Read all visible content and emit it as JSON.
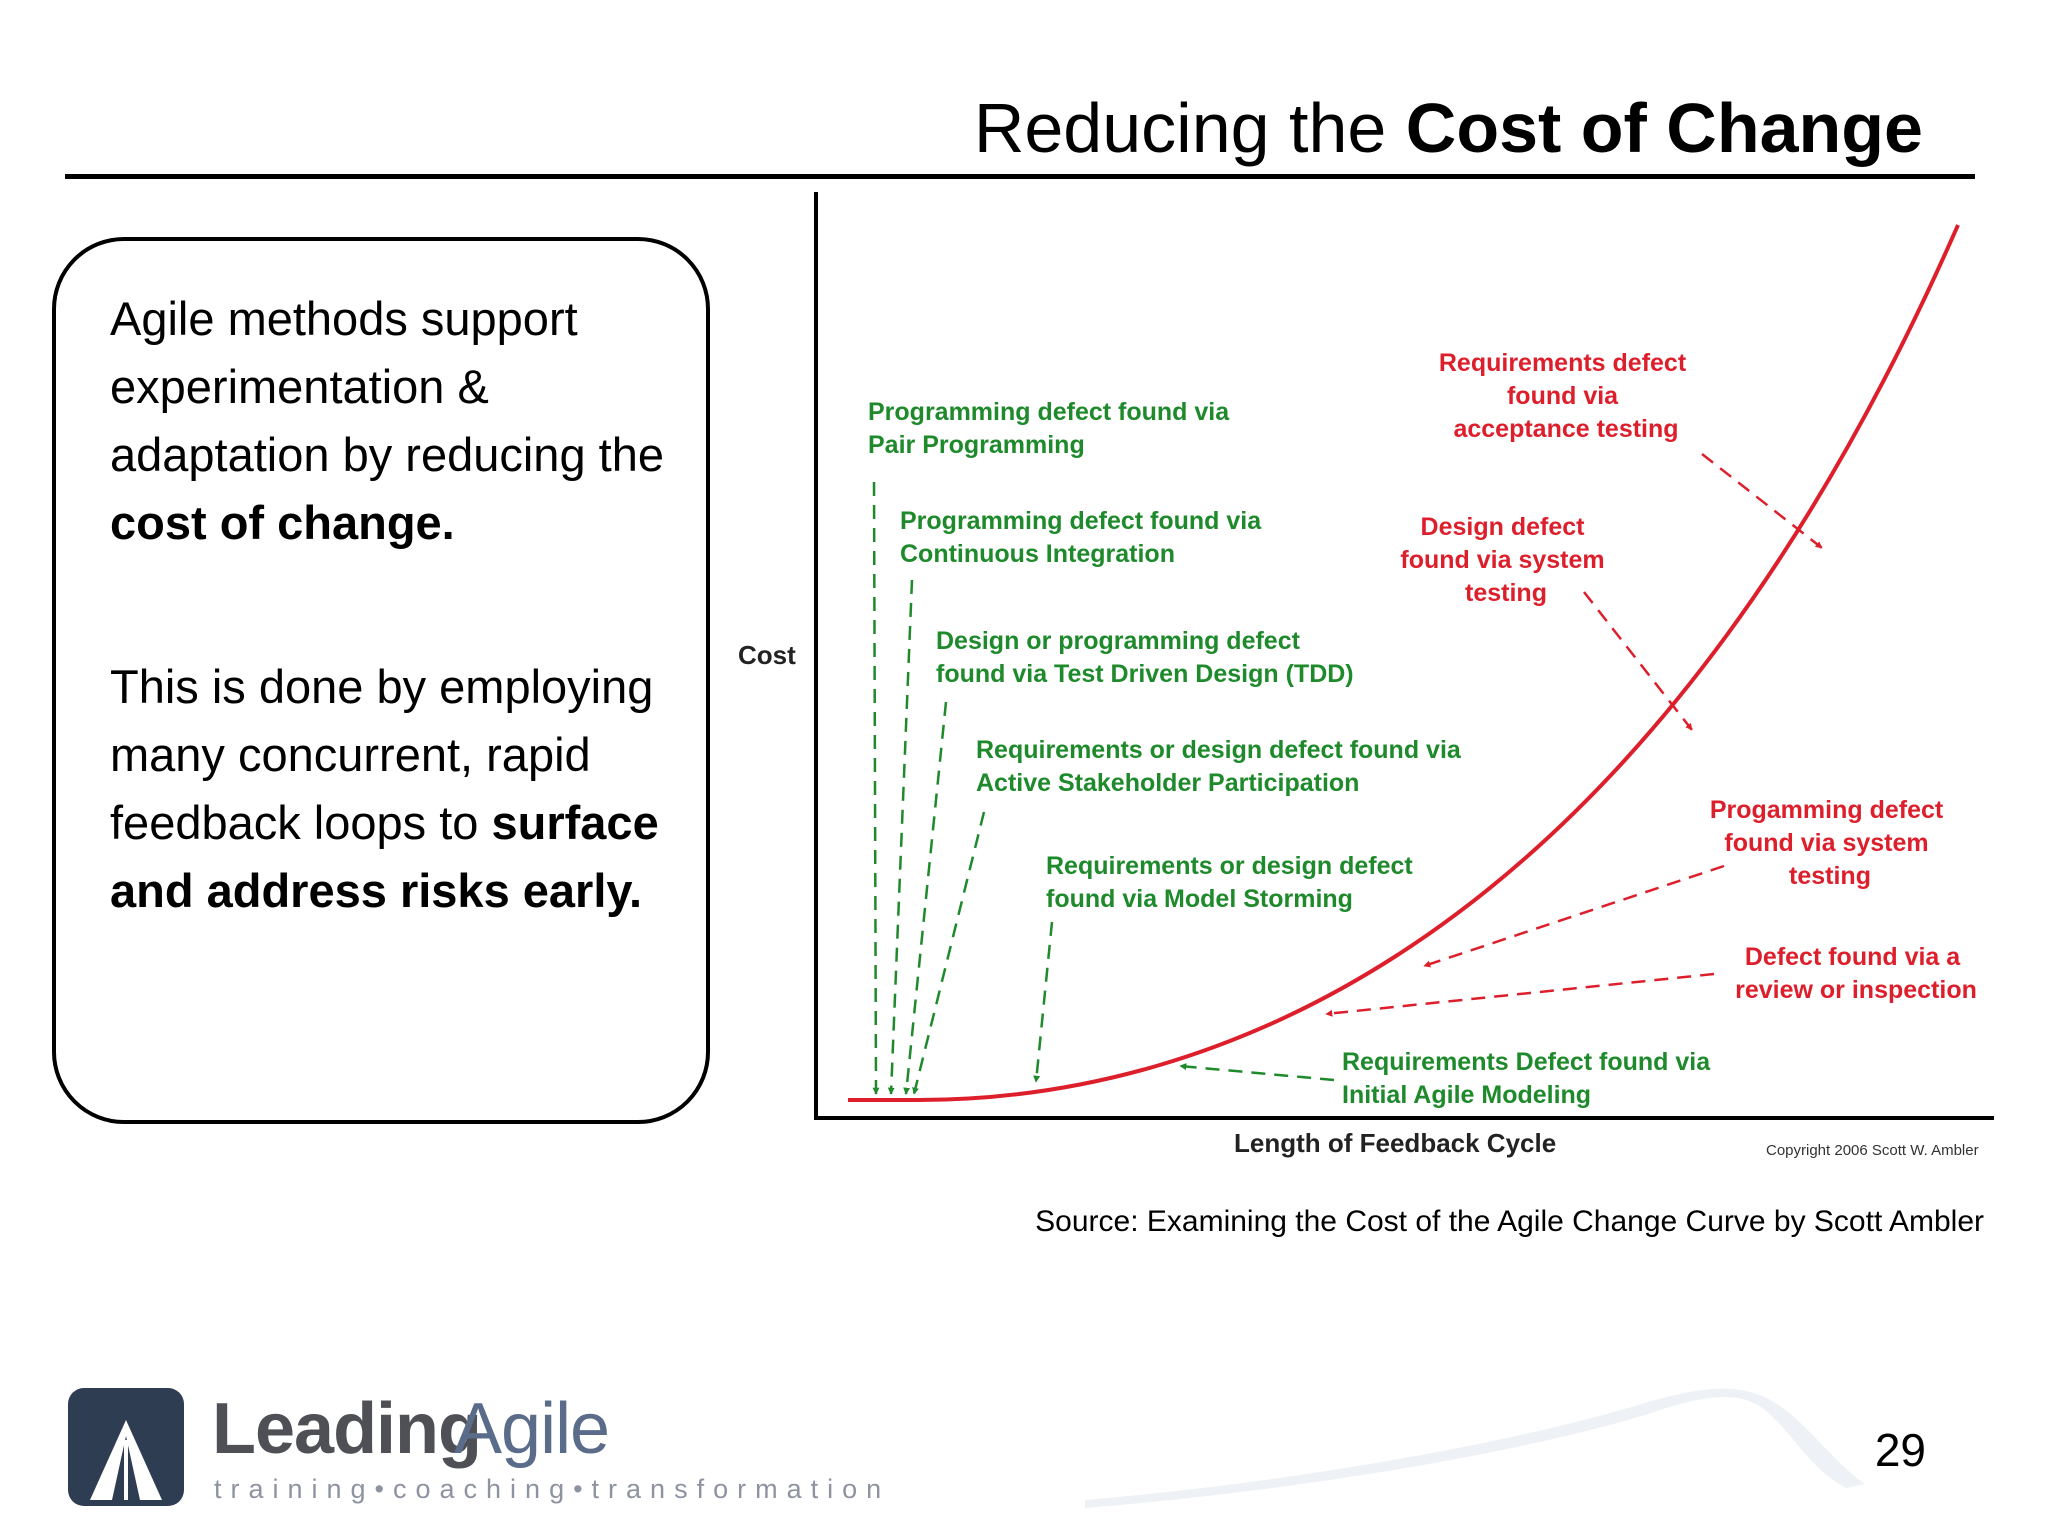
{
  "title": {
    "prefix": "Reducing the ",
    "emphasis": "Cost of Change"
  },
  "callout": {
    "para1": {
      "text": "Agile methods support experimentation & adaptation by reducing the ",
      "emphasis": "cost of change."
    },
    "para2": {
      "text": "This is done by employing many concurrent, rapid feedback loops to ",
      "emphasis": "surface and address risks early."
    }
  },
  "diagram": {
    "y_label": "Cost",
    "x_label": "Length of Feedback Cycle",
    "copyright": "Copyright 2006 Scott W. Ambler",
    "curve_color": "#dd1f2c",
    "green_color": "#1e8a2b",
    "green_labels": [
      {
        "lines": [
          "Programming defect found via",
          "Pair Programming"
        ]
      },
      {
        "lines": [
          "Programming defect found via",
          "Continuous Integration"
        ]
      },
      {
        "lines": [
          "Design or programming defect",
          "found via Test Driven Design (TDD)"
        ]
      },
      {
        "lines": [
          "Requirements or design defect found via",
          "Active Stakeholder Participation"
        ]
      },
      {
        "lines": [
          "Requirements or design defect",
          "found via Model Storming"
        ]
      },
      {
        "lines": [
          "Requirements Defect found via",
          "Initial Agile Modeling"
        ]
      }
    ],
    "red_labels": [
      {
        "lines": [
          "Requirements defect",
          "found via",
          "acceptance testing"
        ]
      },
      {
        "lines": [
          "Design defect",
          "found via system",
          "testing"
        ]
      },
      {
        "lines": [
          "Progamming defect",
          "found via system",
          "testing"
        ]
      },
      {
        "lines": [
          "Defect found via a",
          "review or inspection"
        ]
      }
    ]
  },
  "source": "Source: Examining the Cost of the Agile Change Curve by Scott Ambler",
  "page_number": "29",
  "logo": {
    "word_dark": "Leading",
    "word_blue": "Agile",
    "tagline": "training•coaching•transformation",
    "colors": {
      "dark": "#2f3d52",
      "blue": "#5b6c8a",
      "tagline": "#8d93a0"
    }
  }
}
